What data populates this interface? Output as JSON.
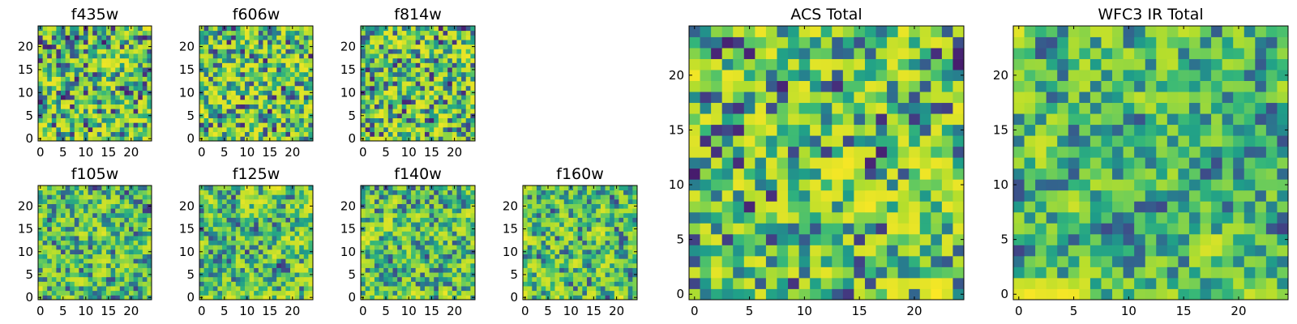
{
  "chart_data": [
    {
      "type": "heatmap",
      "title": "f435w",
      "xlim": [
        0,
        24
      ],
      "ylim": [
        0,
        24
      ],
      "xticks": [
        "0",
        "5",
        "10",
        "15",
        "20"
      ],
      "yticks": [
        "0",
        "5",
        "10",
        "15",
        "20"
      ],
      "grid": 25,
      "colormap": "viridis",
      "seed": 11
    },
    {
      "type": "heatmap",
      "title": "f606w",
      "xlim": [
        0,
        24
      ],
      "ylim": [
        0,
        24
      ],
      "xticks": [
        "0",
        "5",
        "10",
        "15",
        "20"
      ],
      "yticks": [
        "0",
        "5",
        "10",
        "15",
        "20"
      ],
      "grid": 25,
      "colormap": "viridis",
      "seed": 23
    },
    {
      "type": "heatmap",
      "title": "f814w",
      "xlim": [
        0,
        24
      ],
      "ylim": [
        0,
        24
      ],
      "xticks": [
        "0",
        "5",
        "10",
        "15",
        "20"
      ],
      "yticks": [
        "0",
        "5",
        "10",
        "15",
        "20"
      ],
      "grid": 25,
      "colormap": "viridis",
      "seed": 37
    },
    {
      "type": "heatmap",
      "title": "f105w",
      "xlim": [
        0,
        24
      ],
      "ylim": [
        0,
        24
      ],
      "xticks": [
        "0",
        "5",
        "10",
        "15",
        "20"
      ],
      "yticks": [
        "0",
        "5",
        "10",
        "15",
        "20"
      ],
      "grid": 25,
      "colormap": "viridis",
      "seed": 41
    },
    {
      "type": "heatmap",
      "title": "f125w",
      "xlim": [
        0,
        24
      ],
      "ylim": [
        0,
        24
      ],
      "xticks": [
        "0",
        "5",
        "10",
        "15",
        "20"
      ],
      "yticks": [
        "0",
        "5",
        "10",
        "15",
        "20"
      ],
      "grid": 25,
      "colormap": "viridis",
      "seed": 53
    },
    {
      "type": "heatmap",
      "title": "f140w",
      "xlim": [
        0,
        24
      ],
      "ylim": [
        0,
        24
      ],
      "xticks": [
        "0",
        "5",
        "10",
        "15",
        "20"
      ],
      "yticks": [
        "0",
        "5",
        "10",
        "15",
        "20"
      ],
      "grid": 25,
      "colormap": "viridis",
      "seed": 67
    },
    {
      "type": "heatmap",
      "title": "f160w",
      "xlim": [
        0,
        24
      ],
      "ylim": [
        0,
        24
      ],
      "xticks": [
        "0",
        "5",
        "10",
        "15",
        "20"
      ],
      "yticks": [
        "0",
        "5",
        "10",
        "15",
        "20"
      ],
      "grid": 25,
      "colormap": "viridis",
      "seed": 79
    },
    {
      "type": "heatmap",
      "title": "ACS Total",
      "xlim": [
        0,
        24
      ],
      "ylim": [
        0,
        24
      ],
      "xticks": [
        "0",
        "5",
        "10",
        "15",
        "20"
      ],
      "yticks": [
        "0",
        "5",
        "10",
        "15",
        "20"
      ],
      "grid": 25,
      "colormap": "viridis",
      "seed": 83
    },
    {
      "type": "heatmap",
      "title": "WFC3 IR Total",
      "xlim": [
        0,
        24
      ],
      "ylim": [
        0,
        24
      ],
      "xticks": [
        "0",
        "5",
        "10",
        "15",
        "20"
      ],
      "yticks": [
        "0",
        "5",
        "10",
        "15",
        "20"
      ],
      "grid": 25,
      "colormap": "viridis",
      "seed": 97
    }
  ]
}
